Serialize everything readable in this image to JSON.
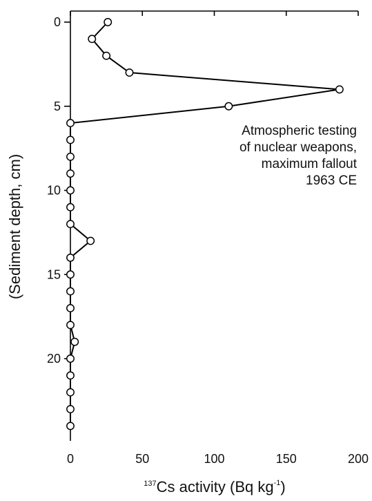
{
  "chart_data": {
    "type": "line",
    "series": [
      {
        "x": [
          26,
          15,
          25,
          41,
          187,
          110,
          0,
          0,
          0,
          0,
          0,
          0,
          0,
          14,
          0,
          0,
          0,
          0,
          0,
          3,
          0,
          0,
          0,
          0,
          0
        ],
        "y": [
          0,
          1,
          2,
          3,
          4,
          5,
          6,
          7,
          8,
          9,
          10,
          11,
          12,
          13,
          14,
          15,
          16,
          17,
          18,
          19,
          20,
          21,
          22,
          23,
          24
        ]
      }
    ],
    "xlim": [
      0,
      200
    ],
    "ylim": [
      0,
      24.5
    ],
    "y_inverted": true,
    "x_ticks": [
      0,
      50,
      100,
      150,
      200
    ],
    "y_ticks": [
      0,
      5,
      10,
      15,
      20
    ],
    "x_tick_labels": [
      "0",
      "50",
      "100",
      "150",
      "200"
    ],
    "y_tick_labels": [
      "0",
      "5",
      "10",
      "15",
      "20"
    ],
    "xlabel": {
      "sup": "137",
      "main": "Cs activity (Bq  kg",
      "unit_sup": "-1",
      "close": ")"
    },
    "ylabel": "(Sediment depth, cm)",
    "annotation": [
      "Atmospheric testing",
      "of nuclear weapons,",
      "maximum fallout",
      "1963 CE"
    ],
    "grid": false,
    "top_axis_ticks_labeled": false
  }
}
